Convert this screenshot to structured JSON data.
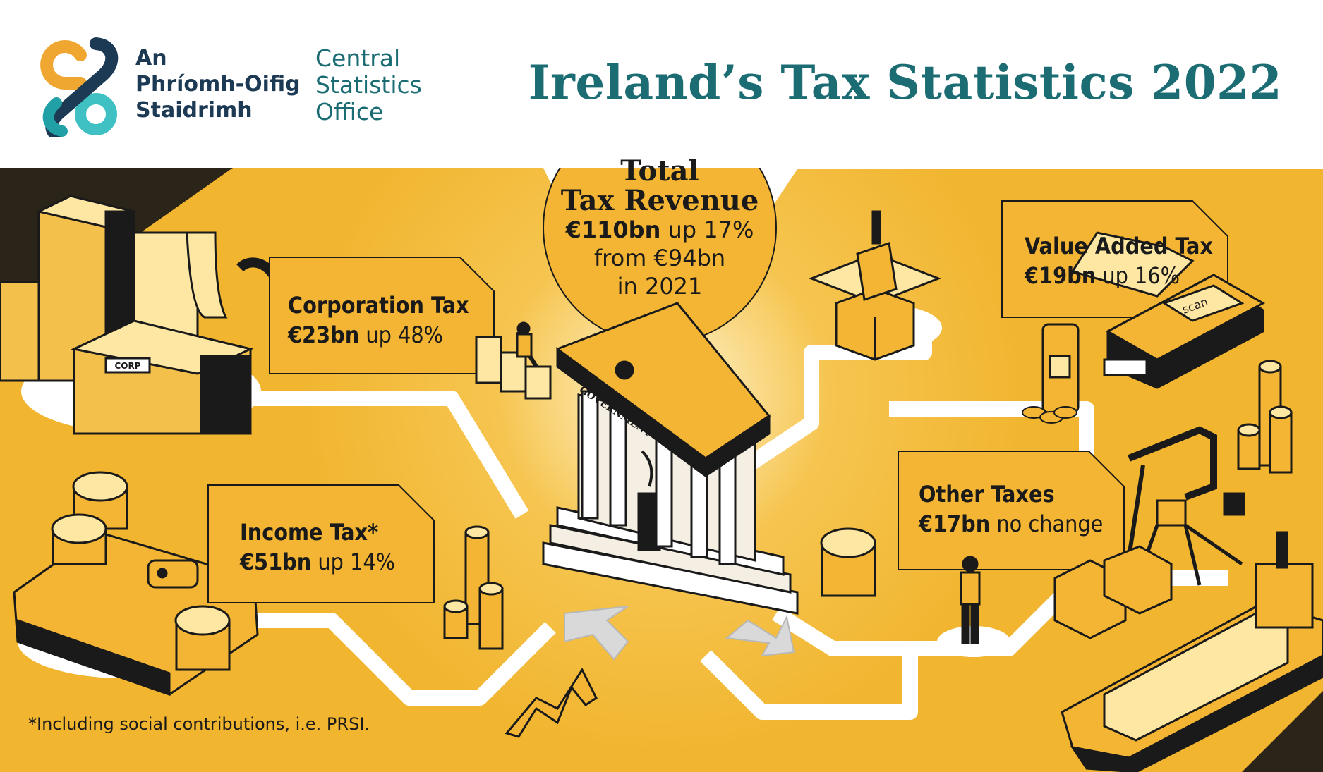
{
  "header": {
    "logo_irish": [
      "An",
      "Phríomh-Oifig",
      "Staidrimh"
    ],
    "logo_english": [
      "Central",
      "Statistics",
      "Office"
    ],
    "title": "Ireland’s Tax Statistics 2022"
  },
  "total": {
    "line1": "Total",
    "line2": "Tax Revenue",
    "amount": "€110bn",
    "change": " up 17%",
    "from": "from €94bn",
    "year": "in 2021"
  },
  "categories": {
    "corporation": {
      "label": "Corporation Tax",
      "amount": "€23bn",
      "change": " up 48%"
    },
    "income": {
      "label": "Income Tax*",
      "amount": "€51bn",
      "change": " up 14%"
    },
    "vat": {
      "label": "Value Added Tax",
      "amount": "€19bn",
      "change": " up 16%"
    },
    "other": {
      "label": "Other Taxes",
      "amount": "€17bn",
      "change": " no change"
    }
  },
  "illustration": {
    "building_sign": "CORP",
    "pediment_text": "GOVERNMENT",
    "terminal_text": "scan"
  },
  "footnote": "*Including social contributions, i.e. PRSI.",
  "colors": {
    "yellow": "#f1b52f",
    "light_yellow": "#fde7a3",
    "teal": "#1b6c73",
    "navy": "#1d3a55",
    "dark": "#1a1a1a"
  }
}
